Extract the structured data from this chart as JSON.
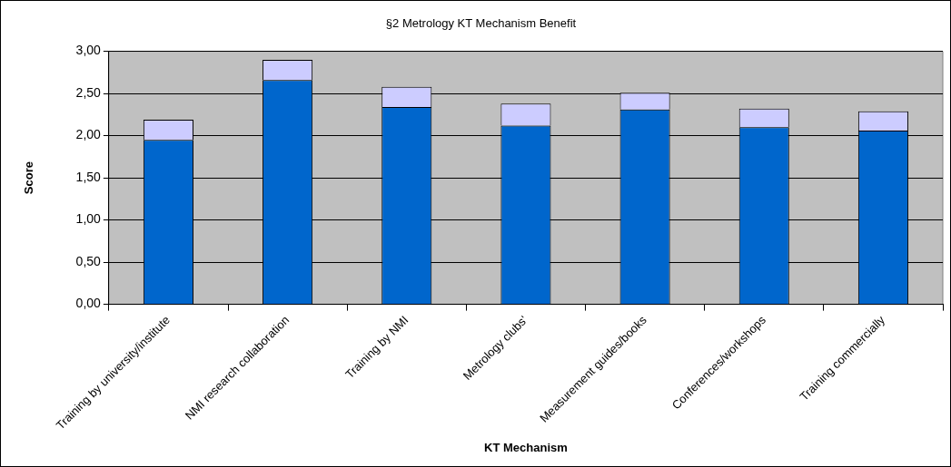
{
  "chart_data": {
    "type": "bar",
    "title": "§2 Metrology KT Mechanism Benefit",
    "xlabel": "KT Mechanism",
    "ylabel": "Score",
    "categories": [
      "Training by university/institute",
      "NMI research collaboration",
      "Training by NMI",
      "Metrology clubs'",
      "Measurement guides/books",
      "Conferences/workshops",
      "Training commercially"
    ],
    "stacked": true,
    "series": [
      {
        "color": "#0066cc",
        "values": [
          1.95,
          2.66,
          2.34,
          2.12,
          2.31,
          2.1,
          2.06
        ]
      },
      {
        "color": "#ccccff",
        "values": [
          0.24,
          0.24,
          0.24,
          0.26,
          0.2,
          0.22,
          0.23
        ]
      }
    ],
    "ylim": [
      0,
      3
    ],
    "yticks": [
      {
        "value": 0,
        "label": "0,00"
      },
      {
        "value": 0.5,
        "label": "0,50"
      },
      {
        "value": 1,
        "label": "1,00"
      },
      {
        "value": 1.5,
        "label": "1,50"
      },
      {
        "value": 2,
        "label": "2,00"
      },
      {
        "value": 2.5,
        "label": "2,50"
      },
      {
        "value": 3,
        "label": "3,00"
      }
    ],
    "grid": "y",
    "legend": false
  }
}
